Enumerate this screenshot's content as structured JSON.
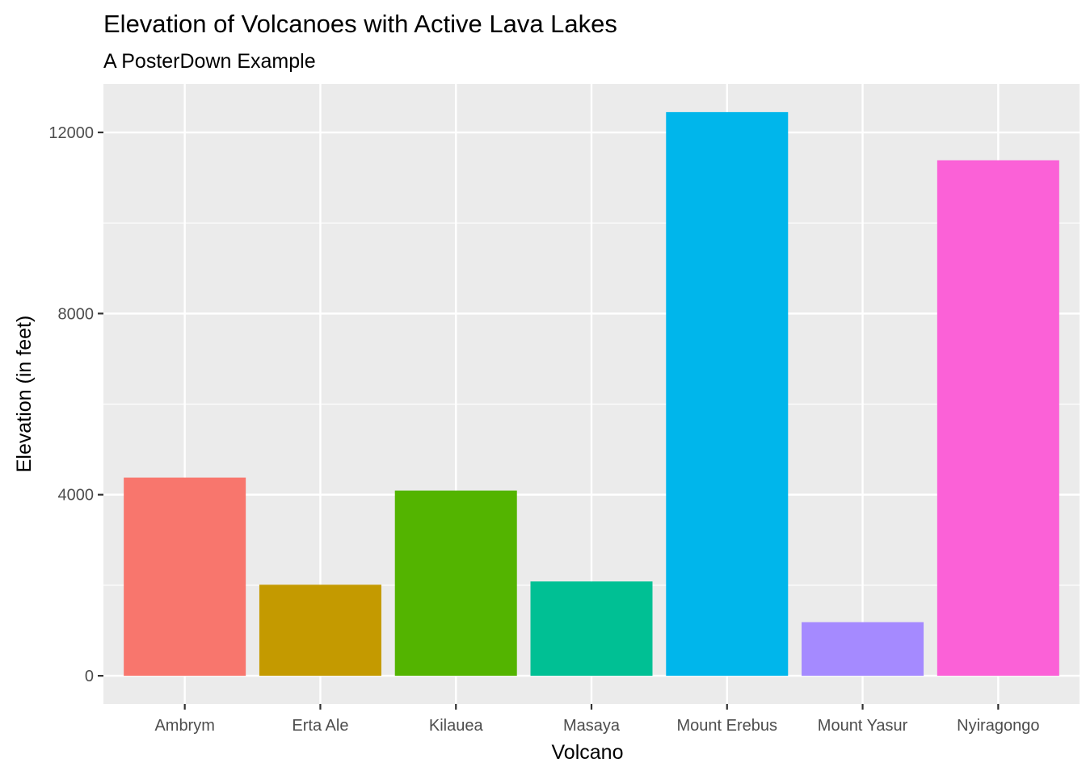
{
  "chart_data": {
    "type": "bar",
    "title": "Elevation of Volcanoes with Active Lava Lakes",
    "subtitle": "A PosterDown Example",
    "xlabel": "Volcano",
    "ylabel": "Elevation (in feet)",
    "categories": [
      "Ambrym",
      "Erta Ale",
      "Kilauea",
      "Masaya",
      "Mount Erebus",
      "Mount Yasur",
      "Nyiragongo"
    ],
    "values": [
      4377,
      2011,
      4091,
      2083,
      12448,
      1184,
      11385
    ],
    "colors": [
      "#F8766D",
      "#C49A00",
      "#53B400",
      "#00C094",
      "#00B6EB",
      "#A58AFF",
      "#FB61D7"
    ],
    "yticks": [
      0,
      4000,
      8000,
      12000
    ],
    "ylim": [
      -622,
      13070
    ],
    "panel_background": "#EBEBEB",
    "grid_color": "#FFFFFF",
    "grid": true,
    "legend": "none"
  }
}
